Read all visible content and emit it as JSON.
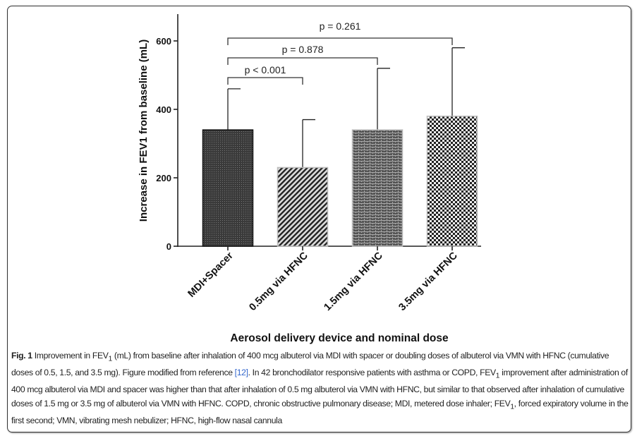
{
  "chart_data": {
    "type": "bar",
    "categories": [
      "MDI+Spacer",
      "0.5mg via HFNC",
      "1.5mg via HFNC",
      "3.5mg via HFNC"
    ],
    "values": [
      340,
      230,
      340,
      380
    ],
    "error_upper": [
      460,
      370,
      520,
      580
    ],
    "xlabel": "Aerosol delivery device and nominal dose",
    "ylabel": "Increase in FEV1 from baseline (mL)",
    "ylim": [
      0,
      680
    ],
    "yticks": [
      0,
      200,
      400,
      600
    ],
    "grid": false,
    "patterns": [
      "dense-dots-dark",
      "diagonal-stripes",
      "brick",
      "checkerboard"
    ],
    "comparisons": [
      {
        "from": "MDI+Spacer",
        "to": "0.5mg via HFNC",
        "label": "p < 0.001"
      },
      {
        "from": "MDI+Spacer",
        "to": "1.5mg via HFNC",
        "label": "p = 0.878"
      },
      {
        "from": "MDI+Spacer",
        "to": "3.5mg via HFNC",
        "label": "p = 0.261"
      }
    ]
  },
  "caption": {
    "fig_label": "Fig. 1",
    "t1": " Improvement in FEV",
    "sub1": "1",
    "t2": " (mL) from baseline after inhalation of 400 mcg albuterol via MDI with spacer or doubling doses of albuterol via VMN with HFNC (cumulative doses of 0.5, 1.5, and 3.5 mg). Figure modified from reference ",
    "ref": "[12]",
    "t3": ". In 42 bronchodilator responsive patients with asthma or COPD, FEV",
    "sub2": "1",
    "t4": " improvement after administration of 400 mcg albuterol via MDI and spacer was higher than that after inhalation of 0.5 mg albuterol via VMN with HFNC, but similar to that observed after inhalation of cumulative doses of 1.5 mg or 3.5 mg of albuterol via VMN with HFNC. COPD, chronic obstructive pulmonary disease; MDI, metered dose inhaler; FEV",
    "sub3": "1",
    "t5": ", forced expiratory volume in the first second; VMN, vibrating mesh nebulizer; HFNC, high-flow nasal cannula"
  }
}
